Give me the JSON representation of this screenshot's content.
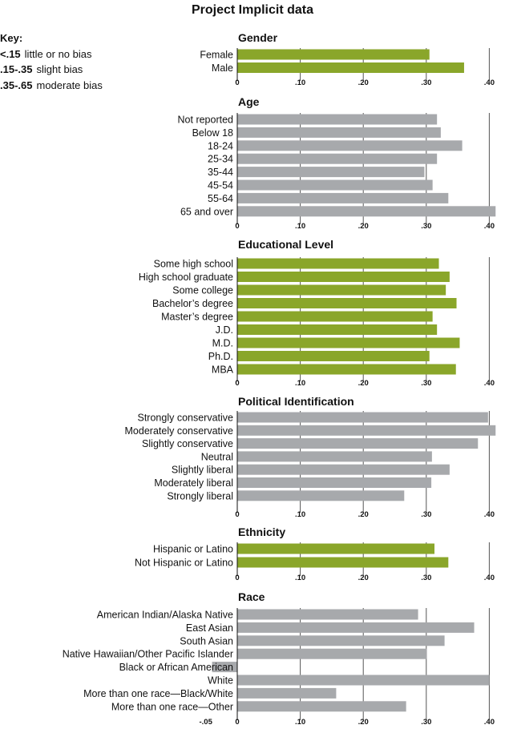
{
  "title": "Project Implicit data",
  "key": {
    "title": "Key:",
    "items": [
      {
        "range": "<.15",
        "label": "little or no bias"
      },
      {
        "range": ".15-.35",
        "label": "slight bias"
      },
      {
        "range": ".35-.65",
        "label": "moderate bias"
      }
    ]
  },
  "colors": {
    "green": "#8aa62a",
    "gray": "#a7a9ac",
    "axis": "#555555"
  },
  "chart_data": [
    {
      "type": "bar",
      "orientation": "horizontal",
      "title": "Gender",
      "color": "green",
      "categories": [
        "Female",
        "Male"
      ],
      "values": [
        0.305,
        0.36
      ],
      "xlim": [
        0,
        0.4
      ],
      "ticks": [
        0,
        0.1,
        0.2,
        0.3,
        0.4
      ],
      "tick_labels": [
        "0",
        ".10",
        ".20",
        ".30",
        ".40"
      ]
    },
    {
      "type": "bar",
      "orientation": "horizontal",
      "title": "Age",
      "color": "gray",
      "categories": [
        "Not reported",
        "Below 18",
        "18-24",
        "25-34",
        "35-44",
        "45-54",
        "55-64",
        "65 and over"
      ],
      "values": [
        0.317,
        0.323,
        0.357,
        0.317,
        0.297,
        0.31,
        0.335,
        0.41
      ],
      "xlim": [
        0,
        0.4
      ],
      "ticks": [
        0,
        0.1,
        0.2,
        0.3,
        0.4
      ],
      "tick_labels": [
        "0",
        ".10",
        ".20",
        ".30",
        ".40"
      ]
    },
    {
      "type": "bar",
      "orientation": "horizontal",
      "title": "Educational Level",
      "color": "green",
      "categories": [
        "Some high school",
        "High school graduate",
        "Some college",
        "Bachelor’s degree",
        "Master’s degree",
        "J.D.",
        "M.D.",
        "Ph.D.",
        "MBA"
      ],
      "values": [
        0.32,
        0.337,
        0.331,
        0.348,
        0.31,
        0.317,
        0.353,
        0.305,
        0.347
      ],
      "xlim": [
        0,
        0.4
      ],
      "ticks": [
        0,
        0.1,
        0.2,
        0.3,
        0.4
      ],
      "tick_labels": [
        "0",
        ".10",
        ".20",
        ".30",
        ".40"
      ]
    },
    {
      "type": "bar",
      "orientation": "horizontal",
      "title": "Political Identification",
      "color": "gray",
      "categories": [
        "Strongly conservative",
        "Moderately conservative",
        "Slightly conservative",
        "Neutral",
        "Slightly liberal",
        "Moderately liberal",
        "Strongly liberal"
      ],
      "values": [
        0.398,
        0.41,
        0.382,
        0.309,
        0.337,
        0.308,
        0.265
      ],
      "xlim": [
        0,
        0.4
      ],
      "ticks": [
        0,
        0.1,
        0.2,
        0.3,
        0.4
      ],
      "tick_labels": [
        "0",
        ".10",
        ".20",
        ".30",
        ".40"
      ]
    },
    {
      "type": "bar",
      "orientation": "horizontal",
      "title": "Ethnicity",
      "color": "green",
      "categories": [
        "Hispanic or Latino",
        "Not Hispanic or Latino"
      ],
      "values": [
        0.313,
        0.335
      ],
      "xlim": [
        0,
        0.4
      ],
      "ticks": [
        0,
        0.1,
        0.2,
        0.3,
        0.4
      ],
      "tick_labels": [
        "0",
        ".10",
        ".20",
        ".30",
        ".40"
      ]
    },
    {
      "type": "bar",
      "orientation": "horizontal",
      "title": "Race",
      "color": "gray",
      "categories": [
        "American Indian/Alaska Native",
        "East Asian",
        "South Asian",
        "Native Hawaiian/Other Pacific Islander",
        "Black or African American",
        "White",
        "More than one race—Black/White",
        "More than one race—Other"
      ],
      "values": [
        0.287,
        0.376,
        0.329,
        0.301,
        -0.04,
        0.4,
        0.157,
        0.268
      ],
      "xlim": [
        -0.05,
        0.4
      ],
      "ticks": [
        -0.05,
        0,
        0.1,
        0.2,
        0.3,
        0.4
      ],
      "tick_labels": [
        "-.05",
        "0",
        ".10",
        ".20",
        ".30",
        ".40"
      ]
    }
  ]
}
